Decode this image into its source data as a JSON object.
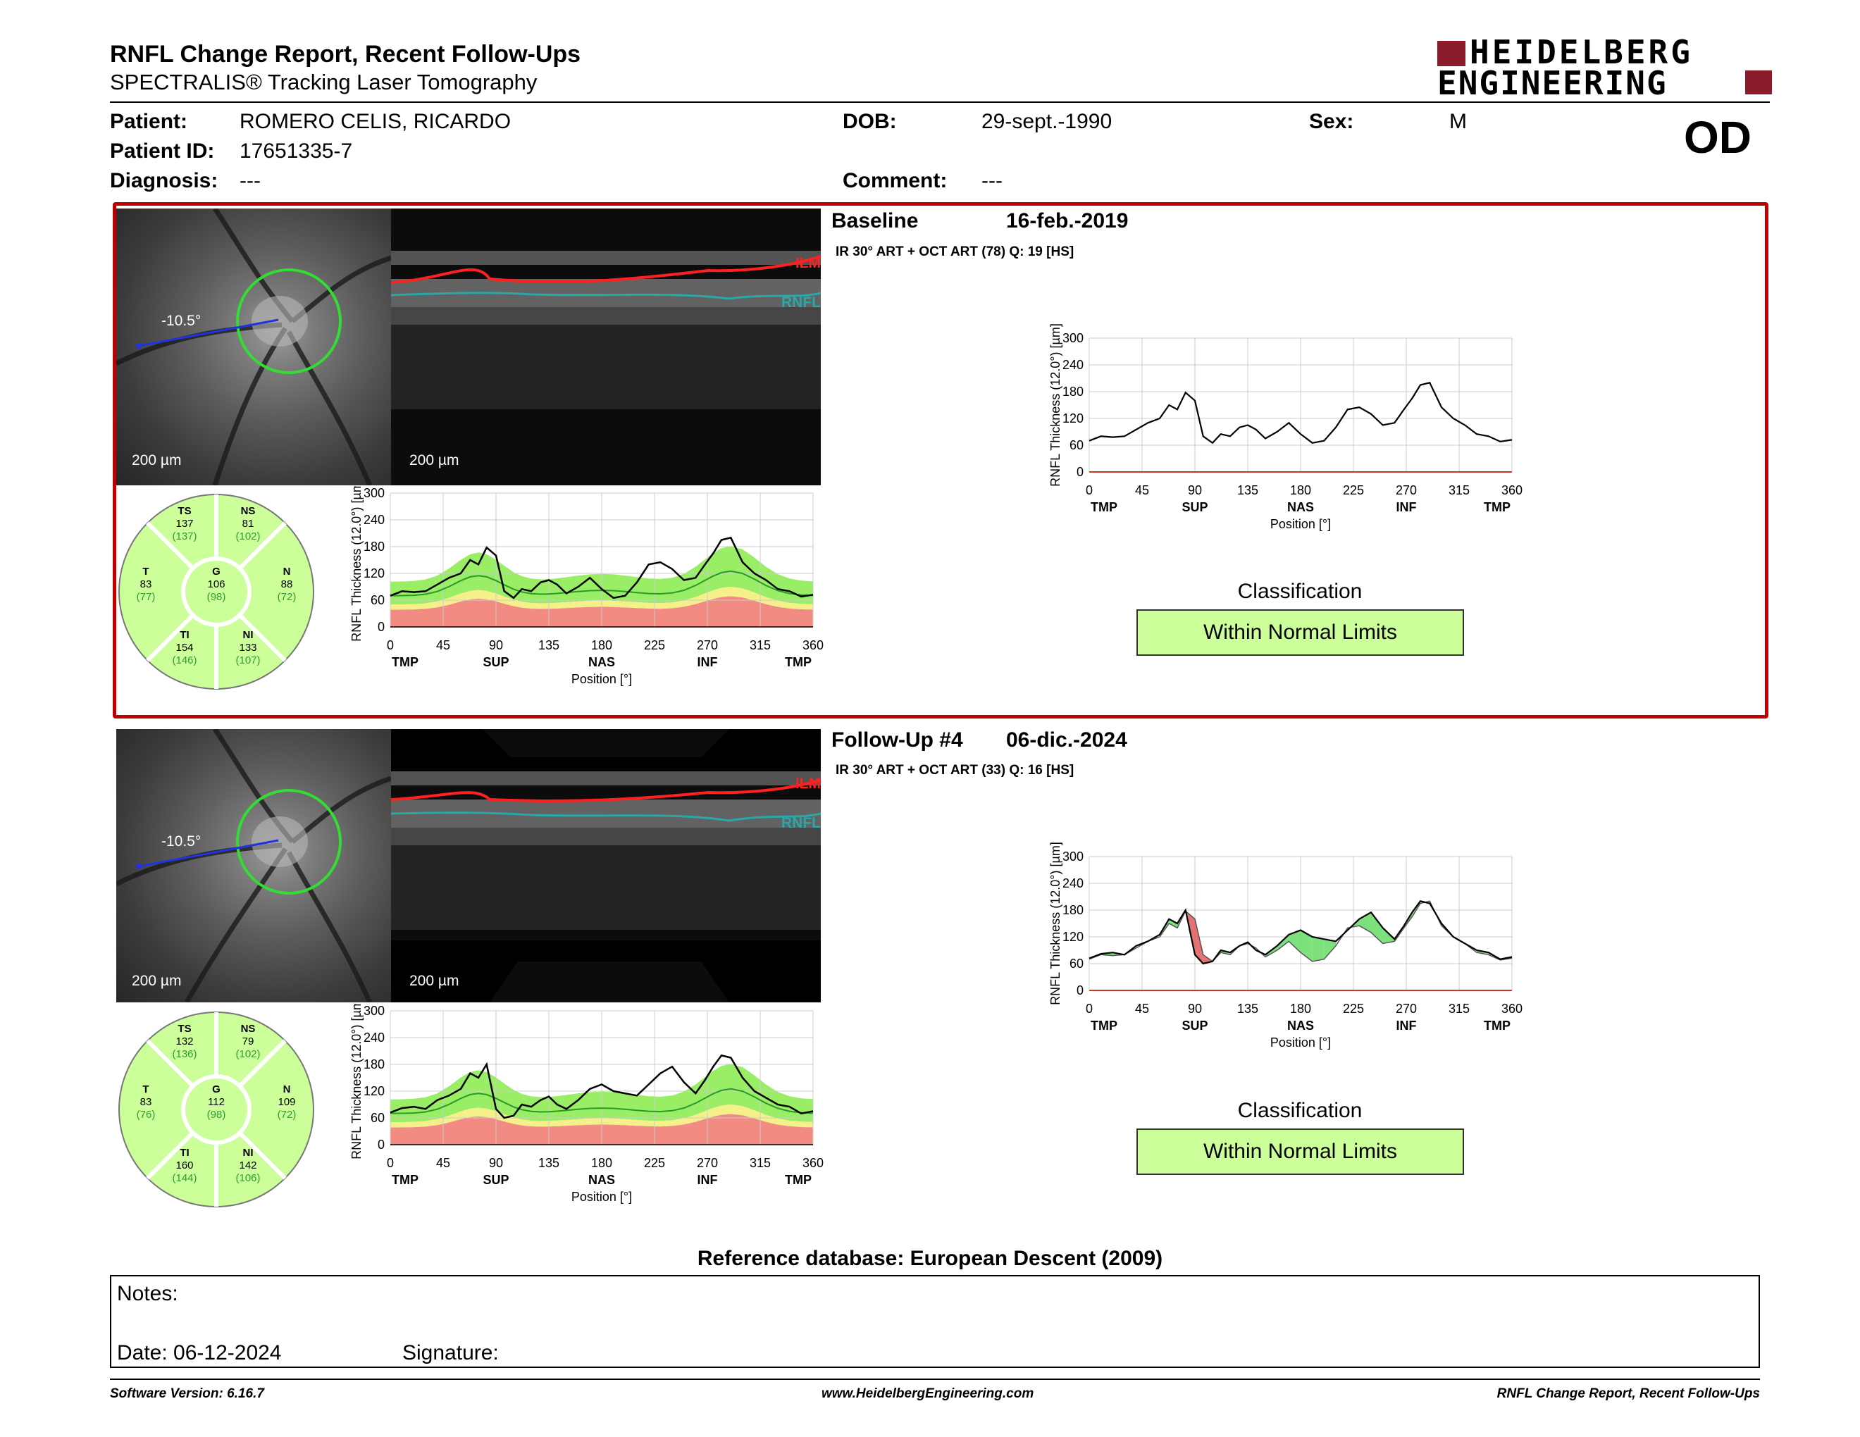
{
  "report": {
    "title": "RNFL Change Report, Recent Follow-Ups",
    "subtitle": "SPECTRALIS® Tracking Laser Tomography",
    "logo_line1": "HEIDELBERG",
    "logo_line2": "ENGINEERING",
    "eye": "OD"
  },
  "patient": {
    "patient_label": "Patient:",
    "patient_value": "ROMERO CELIS, RICARDO",
    "id_label": "Patient ID:",
    "id_value": "17651335-7",
    "diagnosis_label": "Diagnosis:",
    "diagnosis_value": "---",
    "dob_label": "DOB:",
    "dob_value": "29-sept.-1990",
    "comment_label": "Comment:",
    "comment_value": "---",
    "sex_label": "Sex:",
    "sex_value": "M"
  },
  "colors": {
    "border_red": "#c00000",
    "normal_green": "#ccff99",
    "band_green": "#99ee66",
    "band_yellow": "#f5f08a",
    "band_red": "#f28b82",
    "ilm_red": "#ff2020",
    "rnfl_cyan": "#2aa7a7"
  },
  "exams": [
    {
      "heading": "Baseline",
      "date": "16-feb.-2019",
      "protocol": "IR 30° ART + OCT ART (78) Q: 19 [HS]",
      "angle": "-10.5°",
      "scale_fundus": "200 µm",
      "scale_oct": "200 µm",
      "ilm_label": "ILM",
      "rnfl_label": "RNFL",
      "classification_label": "Classification",
      "classification_value": "Within Normal Limits",
      "sectors": {
        "TS": {
          "label": "TS",
          "value": "137",
          "ref": "(137)"
        },
        "NS": {
          "label": "NS",
          "value": "81",
          "ref": "(102)"
        },
        "T": {
          "label": "T",
          "value": "83",
          "ref": "(77)"
        },
        "G": {
          "label": "G",
          "value": "106",
          "ref": "(98)"
        },
        "N": {
          "label": "N",
          "value": "88",
          "ref": "(72)"
        },
        "TI": {
          "label": "TI",
          "value": "154",
          "ref": "(146)"
        },
        "NI": {
          "label": "NI",
          "value": "133",
          "ref": "(107)"
        }
      }
    },
    {
      "heading": "Follow-Up #4",
      "date": "06-dic.-2024",
      "protocol": "IR 30° ART + OCT ART (33) Q: 16 [HS]",
      "angle": "-10.5°",
      "scale_fundus": "200 µm",
      "scale_oct": "200 µm",
      "ilm_label": "ILM",
      "rnfl_label": "RNFL",
      "classification_label": "Classification",
      "classification_value": "Within Normal Limits",
      "sectors": {
        "TS": {
          "label": "TS",
          "value": "132",
          "ref": "(136)"
        },
        "NS": {
          "label": "NS",
          "value": "79",
          "ref": "(102)"
        },
        "T": {
          "label": "T",
          "value": "83",
          "ref": "(76)"
        },
        "G": {
          "label": "G",
          "value": "112",
          "ref": "(98)"
        },
        "N": {
          "label": "N",
          "value": "109",
          "ref": "(72)"
        },
        "TI": {
          "label": "TI",
          "value": "160",
          "ref": "(144)"
        },
        "NI": {
          "label": "NI",
          "value": "142",
          "ref": "(106)"
        }
      }
    }
  ],
  "chart_axes": {
    "ylabel": "RNFL Thickness (12.0°) [µm]",
    "xlabel": "Position [°]",
    "yticks": [
      "300",
      "240",
      "180",
      "120",
      "60",
      "0"
    ],
    "xticks": [
      "0",
      "45",
      "90",
      "135",
      "180",
      "225",
      "270",
      "315",
      "360"
    ],
    "regions": [
      "TMP",
      "SUP",
      "NAS",
      "INF",
      "TMP"
    ]
  },
  "chart_data": [
    {
      "type": "line",
      "name": "baseline-profile",
      "xlabel": "Position [°]",
      "ylabel": "RNFL Thickness (12.0°) [µm]",
      "ylim": [
        0,
        300
      ],
      "xlim": [
        0,
        360
      ],
      "x": [
        0,
        10,
        20,
        30,
        40,
        50,
        60,
        68,
        75,
        82,
        90,
        97,
        105,
        112,
        120,
        128,
        135,
        142,
        150,
        160,
        170,
        180,
        190,
        200,
        210,
        220,
        230,
        240,
        250,
        260,
        268,
        275,
        282,
        290,
        300,
        310,
        320,
        330,
        340,
        350,
        360
      ],
      "values": [
        70,
        80,
        78,
        80,
        95,
        110,
        120,
        150,
        140,
        178,
        160,
        80,
        65,
        85,
        80,
        100,
        105,
        95,
        75,
        90,
        110,
        85,
        65,
        70,
        100,
        140,
        145,
        130,
        105,
        110,
        140,
        165,
        195,
        200,
        145,
        120,
        105,
        85,
        80,
        68,
        72
      ]
    },
    {
      "type": "line",
      "name": "follow-up-profile",
      "xlabel": "Position [°]",
      "ylabel": "RNFL Thickness (12.0°) [µm]",
      "ylim": [
        0,
        300
      ],
      "xlim": [
        0,
        360
      ],
      "x": [
        0,
        10,
        20,
        30,
        40,
        50,
        60,
        68,
        75,
        82,
        90,
        97,
        105,
        112,
        120,
        128,
        135,
        142,
        150,
        160,
        170,
        180,
        190,
        200,
        210,
        220,
        230,
        240,
        250,
        260,
        268,
        275,
        282,
        290,
        300,
        310,
        320,
        330,
        340,
        350,
        360
      ],
      "values": [
        72,
        82,
        85,
        80,
        100,
        110,
        125,
        160,
        150,
        180,
        80,
        60,
        65,
        90,
        85,
        100,
        108,
        90,
        80,
        100,
        125,
        135,
        120,
        115,
        110,
        135,
        160,
        175,
        140,
        115,
        145,
        175,
        200,
        195,
        150,
        120,
        105,
        90,
        85,
        70,
        75
      ]
    }
  ],
  "reference_db": "Reference database: European Descent (2009)",
  "notes": {
    "notes_label": "Notes:",
    "date_label": "Date: 06-12-2024",
    "signature_label": "Signature:"
  },
  "footer": {
    "left": "Software Version: 6.16.7",
    "center": "www.HeidelbergEngineering.com",
    "right": "RNFL Change Report, Recent Follow-Ups"
  }
}
